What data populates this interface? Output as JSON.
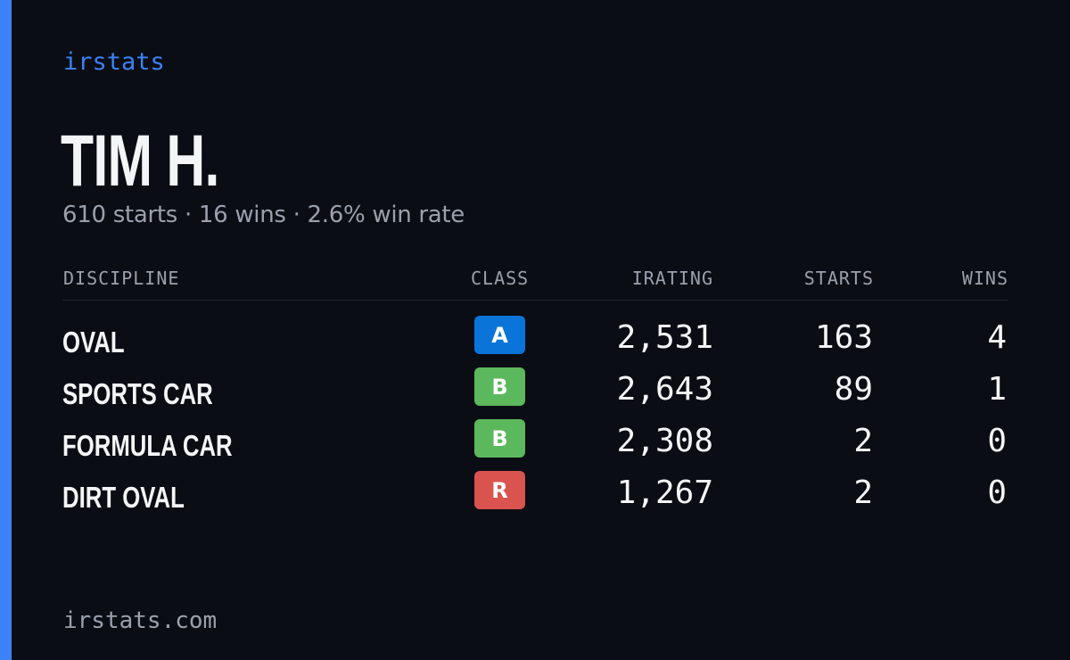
{
  "brand": "irstats",
  "driver": {
    "name": "TIM H.",
    "summary": "610 starts · 16 wins · 2.6% win rate"
  },
  "table": {
    "headers": {
      "discipline": "DISCIPLINE",
      "class": "CLASS",
      "irating": "IRATING",
      "starts": "STARTS",
      "wins": "WINS"
    },
    "rows": [
      {
        "discipline": "OVAL",
        "class": "A",
        "class_color": "#0b74d8",
        "irating": "2,531",
        "starts": "163",
        "wins": "4"
      },
      {
        "discipline": "SPORTS CAR",
        "class": "B",
        "class_color": "#5cb85c",
        "irating": "2,643",
        "starts": "89",
        "wins": "1"
      },
      {
        "discipline": "FORMULA CAR",
        "class": "B",
        "class_color": "#5cb85c",
        "irating": "2,308",
        "starts": "2",
        "wins": "0"
      },
      {
        "discipline": "DIRT OVAL",
        "class": "R",
        "class_color": "#d9534f",
        "irating": "1,267",
        "starts": "2",
        "wins": "0"
      }
    ]
  },
  "footer": "irstats.com",
  "colors": {
    "background": "#0a0d14",
    "accent": "#3b82f6",
    "muted_text": "#9aa1ad"
  }
}
